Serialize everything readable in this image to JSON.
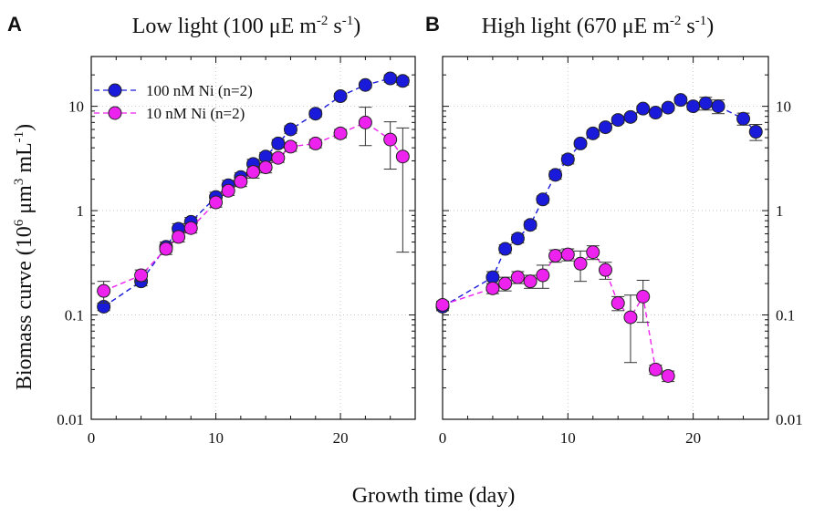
{
  "colors": {
    "series_a": "#1a1adb",
    "series_b": "#ee22ee",
    "axis": "#111111",
    "grid": "#bfbfbf"
  },
  "figure": {
    "ylabel_main": "Biomass curve (10",
    "ylabel_exp6": "6",
    "ylabel_mid": " μm",
    "ylabel_exp3": "3",
    "ylabel_tail": " mL",
    "ylabel_expm1": "-1",
    "ylabel_close": ")",
    "xlabel": "Growth time (day)"
  },
  "legend": {
    "s1": "100 nM Ni (n=2)",
    "s2": "10 nM Ni (n=2)"
  },
  "panels": [
    {
      "letter": "A",
      "title_main": "Low light (100 μE m",
      "title_exp1": "-2",
      "title_mid": " s",
      "title_exp2": "-1",
      "title_close": ")"
    },
    {
      "letter": "B",
      "title_main": "High light (670 μE m",
      "title_exp1": "-2",
      "title_mid": " s",
      "title_exp2": "-1",
      "title_close": ")"
    }
  ],
  "chart_data": [
    {
      "type": "line",
      "panel": "A",
      "title": "Low light (100 μE m-2 s-1)",
      "xlabel": "Growth time (day)",
      "ylabel": "Biomass curve (10^6 μm^3 mL^-1)",
      "xlim": [
        0,
        26
      ],
      "ylim": [
        0.01,
        30
      ],
      "yscale": "log",
      "xticks": [
        0,
        10,
        20
      ],
      "yticks": [
        0.01,
        0.1,
        1,
        10
      ],
      "ytick_labels": [
        "0.01",
        "0.1",
        "1",
        "10"
      ],
      "series": [
        {
          "name": "100 nM Ni (n=2)",
          "x": [
            1,
            4,
            6,
            7,
            8,
            10,
            11,
            12,
            13,
            14,
            15,
            16,
            18,
            20,
            22,
            24,
            25
          ],
          "y": [
            0.12,
            0.21,
            0.45,
            0.67,
            0.78,
            1.35,
            1.75,
            2.1,
            2.8,
            3.3,
            4.4,
            6.0,
            8.5,
            12.5,
            16,
            18.5,
            17.5
          ],
          "err": [
            0.01,
            0.02,
            0.05,
            0.08,
            0.08,
            0.15,
            0.2,
            0.2,
            0.3,
            0.3,
            0.4,
            0.5,
            0.6,
            0.8,
            1.0,
            1.5,
            1.5
          ]
        },
        {
          "name": "10 nM Ni (n=2)",
          "x": [
            1,
            4,
            6,
            7,
            8,
            10,
            11,
            12,
            13,
            14,
            15,
            16,
            18,
            20,
            22,
            24,
            25
          ],
          "y": [
            0.17,
            0.24,
            0.43,
            0.56,
            0.68,
            1.2,
            1.55,
            1.9,
            2.35,
            2.6,
            3.2,
            4.1,
            4.4,
            5.5,
            7.0,
            4.8,
            3.3
          ],
          "err": [
            0.04,
            0.03,
            0.05,
            0.06,
            0.07,
            0.12,
            0.15,
            0.2,
            0.3,
            0.3,
            0.3,
            0.4,
            0.4,
            0.5,
            2.8,
            2.3,
            2.9
          ]
        }
      ]
    },
    {
      "type": "line",
      "panel": "B",
      "title": "High light (670 μE m-2 s-1)",
      "xlabel": "Growth time (day)",
      "ylabel": "Biomass curve (10^6 μm^3 mL^-1)",
      "xlim": [
        0,
        26
      ],
      "ylim": [
        0.01,
        30
      ],
      "yscale": "log",
      "xticks": [
        0,
        10,
        20
      ],
      "yticks": [
        0.01,
        0.1,
        1,
        10
      ],
      "ytick_labels": [
        "0.01",
        "0.1",
        "1",
        "10"
      ],
      "series": [
        {
          "name": "100 nM Ni (n=2)",
          "x": [
            0,
            4,
            5,
            6,
            7,
            8,
            9,
            10,
            11,
            12,
            13,
            14,
            15,
            16,
            17,
            18,
            19,
            20,
            21,
            22,
            24,
            25
          ],
          "y": [
            0.12,
            0.23,
            0.43,
            0.54,
            0.73,
            1.28,
            2.2,
            3.1,
            4.4,
            5.5,
            6.3,
            7.4,
            7.9,
            9.5,
            8.7,
            9.7,
            11.5,
            10.0,
            10.7,
            10.0,
            7.6,
            5.7
          ],
          "err": [
            0.01,
            0.03,
            0.04,
            0.05,
            0.06,
            0.1,
            0.2,
            0.3,
            0.3,
            0.4,
            0.4,
            0.5,
            0.5,
            0.6,
            0.6,
            0.6,
            0.8,
            0.8,
            1.5,
            1.5,
            1.0,
            1.0
          ]
        },
        {
          "name": "10 nM Ni (n=2)",
          "x": [
            0,
            4,
            5,
            6,
            7,
            8,
            9,
            10,
            11,
            12,
            13,
            14,
            15,
            16,
            17,
            18
          ],
          "y": [
            0.125,
            0.18,
            0.2,
            0.23,
            0.21,
            0.24,
            0.37,
            0.38,
            0.31,
            0.4,
            0.27,
            0.13,
            0.095,
            0.15,
            0.03,
            0.026
          ],
          "err": [
            0.01,
            0.02,
            0.03,
            0.03,
            0.03,
            0.06,
            0.05,
            0.05,
            0.1,
            0.06,
            0.05,
            0.02,
            0.06,
            0.065,
            0.003,
            0.003
          ]
        }
      ]
    }
  ]
}
